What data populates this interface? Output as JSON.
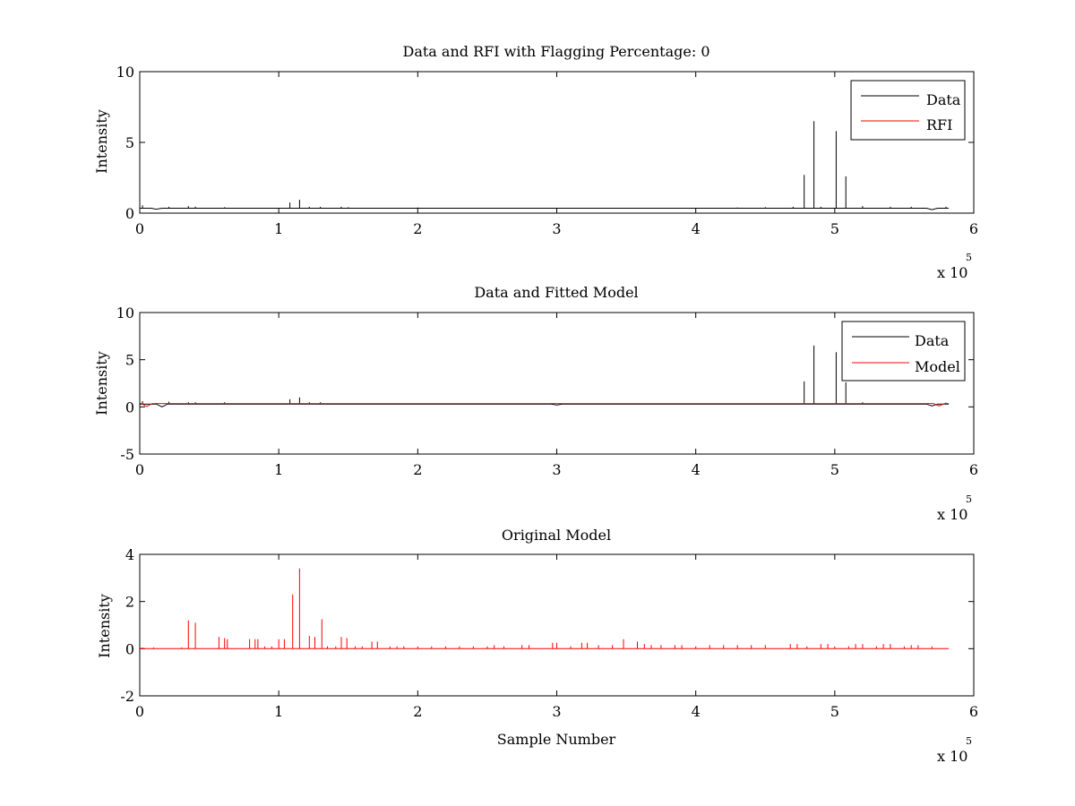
{
  "figure": {
    "background": "#ffffff"
  },
  "chart_data": [
    {
      "type": "line",
      "title": "Data and RFI with Flagging Percentage: 0",
      "xlabel": "",
      "ylabel": "Intensity",
      "xlim": [
        0,
        600000
      ],
      "ylim": [
        0,
        10
      ],
      "xticks": [
        0,
        1,
        2,
        3,
        4,
        5,
        6
      ],
      "yticks": [
        0,
        5,
        10
      ],
      "x_multiplier": {
        "base": "x 10",
        "exponent": "5"
      },
      "grid": false,
      "legend": {
        "position": "top-right",
        "entries": [
          "Data",
          "RFI"
        ]
      },
      "series": [
        {
          "name": "Data",
          "color": "#000000",
          "baseline": 0.35,
          "x_end": 582000,
          "peaks": [
            [
              2000,
              0.55
            ],
            [
              21000,
              0.45
            ],
            [
              35000,
              0.5
            ],
            [
              40000,
              0.45
            ],
            [
              61000,
              0.42
            ],
            [
              108000,
              0.75
            ],
            [
              115000,
              0.95
            ],
            [
              122000,
              0.45
            ],
            [
              130000,
              0.45
            ],
            [
              145000,
              0.45
            ],
            [
              150000,
              0.42
            ],
            [
              200000,
              0.4
            ],
            [
              300000,
              0.38
            ],
            [
              350000,
              0.38
            ],
            [
              400000,
              0.38
            ],
            [
              430000,
              0.4
            ],
            [
              450000,
              0.42
            ],
            [
              470000,
              0.45
            ],
            [
              490000,
              0.45
            ],
            [
              478000,
              2.7
            ],
            [
              485000,
              6.5
            ],
            [
              501000,
              5.8
            ],
            [
              508000,
              2.6
            ],
            [
              520000,
              0.5
            ],
            [
              540000,
              0.45
            ],
            [
              555000,
              0.45
            ],
            [
              580000,
              0.45
            ]
          ],
          "dips": [
            [
              12000,
              0.28
            ],
            [
              570000,
              0.25
            ]
          ]
        },
        {
          "name": "RFI",
          "color": "#ff0000",
          "baseline": 0,
          "x_end": 0,
          "peaks": [],
          "dips": []
        }
      ]
    },
    {
      "type": "line",
      "title": "Data and Fitted Model",
      "xlabel": "",
      "ylabel": "Intensity",
      "xlim": [
        0,
        600000
      ],
      "ylim": [
        -5,
        10
      ],
      "xticks": [
        0,
        1,
        2,
        3,
        4,
        5,
        6
      ],
      "yticks": [
        -5,
        0,
        5,
        10
      ],
      "x_multiplier": {
        "base": "x 10",
        "exponent": "5"
      },
      "grid": false,
      "legend": {
        "position": "top-right",
        "entries": [
          "Data",
          "Model"
        ]
      },
      "series": [
        {
          "name": "Data",
          "color": "#000000",
          "baseline": 0.3,
          "x_end": 582000,
          "peaks": [
            [
              2000,
              0.6
            ],
            [
              21000,
              0.55
            ],
            [
              35000,
              0.5
            ],
            [
              40000,
              0.5
            ],
            [
              61000,
              0.5
            ],
            [
              108000,
              0.8
            ],
            [
              115000,
              1.0
            ],
            [
              122000,
              0.5
            ],
            [
              130000,
              0.5
            ],
            [
              478000,
              2.7
            ],
            [
              485000,
              6.5
            ],
            [
              501000,
              5.8
            ],
            [
              508000,
              2.6
            ],
            [
              520000,
              0.5
            ],
            [
              580000,
              0.45
            ]
          ],
          "dips": [
            [
              16000,
              0.0
            ],
            [
              300000,
              0.2
            ],
            [
              570000,
              0.1
            ]
          ]
        },
        {
          "name": "Model",
          "color": "#ff0000",
          "baseline": 0.35,
          "x_end": 582000,
          "peaks": [],
          "dips": [
            [
              5000,
              0.05
            ],
            [
              575000,
              0.1
            ]
          ]
        }
      ]
    },
    {
      "type": "line",
      "title": "Original Model",
      "xlabel": "Sample Number",
      "ylabel": "Intensity",
      "xlim": [
        0,
        600000
      ],
      "ylim": [
        -2,
        4
      ],
      "xticks": [
        0,
        1,
        2,
        3,
        4,
        5,
        6
      ],
      "yticks": [
        -2,
        0,
        2,
        4
      ],
      "x_multiplier": {
        "base": "x 10",
        "exponent": "5"
      },
      "grid": false,
      "legend": null,
      "series": [
        {
          "color": "#ff0000",
          "baseline": 0,
          "x_end": 582000,
          "peaks": [
            [
              2000,
              0.05
            ],
            [
              10000,
              0.05
            ],
            [
              30000,
              0.05
            ],
            [
              35000,
              1.2
            ],
            [
              40000,
              1.1
            ],
            [
              57000,
              0.5
            ],
            [
              61000,
              0.45
            ],
            [
              63000,
              0.4
            ],
            [
              79000,
              0.4
            ],
            [
              83000,
              0.4
            ],
            [
              85000,
              0.4
            ],
            [
              90000,
              0.1
            ],
            [
              95000,
              0.1
            ],
            [
              100000,
              0.4
            ],
            [
              104000,
              0.4
            ],
            [
              110000,
              2.3
            ],
            [
              115000,
              3.4
            ],
            [
              122000,
              0.55
            ],
            [
              126000,
              0.5
            ],
            [
              131000,
              1.25
            ],
            [
              135000,
              0.1
            ],
            [
              141000,
              0.1
            ],
            [
              145000,
              0.5
            ],
            [
              149000,
              0.45
            ],
            [
              155000,
              0.1
            ],
            [
              160000,
              0.1
            ],
            [
              167000,
              0.3
            ],
            [
              171000,
              0.3
            ],
            [
              180000,
              0.1
            ],
            [
              185000,
              0.1
            ],
            [
              190000,
              0.1
            ],
            [
              200000,
              0.1
            ],
            [
              210000,
              0.1
            ],
            [
              220000,
              0.1
            ],
            [
              230000,
              0.1
            ],
            [
              240000,
              0.1
            ],
            [
              250000,
              0.1
            ],
            [
              255000,
              0.15
            ],
            [
              262000,
              0.1
            ],
            [
              275000,
              0.15
            ],
            [
              280000,
              0.15
            ],
            [
              297000,
              0.25
            ],
            [
              300000,
              0.25
            ],
            [
              310000,
              0.1
            ],
            [
              318000,
              0.25
            ],
            [
              322000,
              0.25
            ],
            [
              330000,
              0.15
            ],
            [
              340000,
              0.15
            ],
            [
              348000,
              0.4
            ],
            [
              358000,
              0.3
            ],
            [
              363000,
              0.2
            ],
            [
              368000,
              0.15
            ],
            [
              375000,
              0.15
            ],
            [
              385000,
              0.15
            ],
            [
              390000,
              0.15
            ],
            [
              400000,
              0.1
            ],
            [
              410000,
              0.15
            ],
            [
              420000,
              0.15
            ],
            [
              430000,
              0.15
            ],
            [
              440000,
              0.15
            ],
            [
              450000,
              0.15
            ],
            [
              468000,
              0.2
            ],
            [
              473000,
              0.2
            ],
            [
              480000,
              0.1
            ],
            [
              490000,
              0.2
            ],
            [
              495000,
              0.2
            ],
            [
              500000,
              0.1
            ],
            [
              510000,
              0.1
            ],
            [
              515000,
              0.2
            ],
            [
              520000,
              0.2
            ],
            [
              530000,
              0.1
            ],
            [
              535000,
              0.2
            ],
            [
              540000,
              0.2
            ],
            [
              550000,
              0.1
            ],
            [
              555000,
              0.15
            ],
            [
              560000,
              0.15
            ],
            [
              570000,
              0.1
            ]
          ],
          "dips": []
        }
      ]
    }
  ]
}
